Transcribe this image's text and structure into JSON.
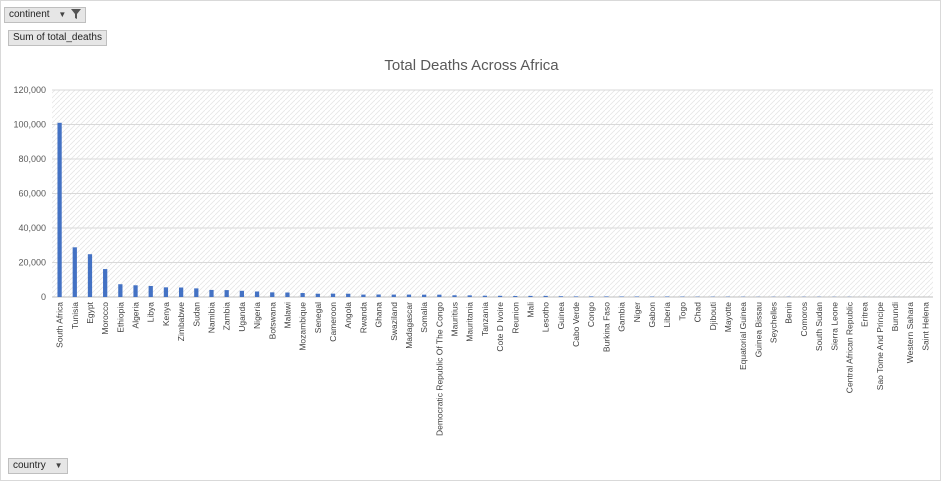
{
  "filters": {
    "continent_label": "continent",
    "values_label": "Sum of total_deaths",
    "axis_field_label": "country"
  },
  "colors": {
    "bar": "#4472c4",
    "grid": "#d9d9d9",
    "plot_pattern": "#e6e6e6"
  },
  "chart_data": {
    "type": "bar",
    "title": "Total Deaths Across Africa",
    "xlabel": "",
    "ylabel": "",
    "ylim": [
      0,
      120000
    ],
    "yticks": [
      "0",
      "20,000",
      "40,000",
      "60,000",
      "80,000",
      "100,000",
      "120,000"
    ],
    "grid": true,
    "legend": "none",
    "categories": [
      "South Africa",
      "Tunisia",
      "Egypt",
      "Morocco",
      "Ethiopia",
      "Algeria",
      "Libya",
      "Kenya",
      "Zimbabwe",
      "Sudan",
      "Namibia",
      "Zambia",
      "Uganda",
      "Nigeria",
      "Botswana",
      "Malawi",
      "Mozambique",
      "Senegal",
      "Cameroon",
      "Angola",
      "Rwanda",
      "Ghana",
      "Swaziland",
      "Madagascar",
      "Somalia",
      "Democratic Republic Of The Congo",
      "Mauritius",
      "Mauritania",
      "Tanzania",
      "Cote D Ivoire",
      "Reunion",
      "Mali",
      "Lesotho",
      "Guinea",
      "Cabo Verde",
      "Congo",
      "Burkina Faso",
      "Gambia",
      "Niger",
      "Gabon",
      "Liberia",
      "Togo",
      "Chad",
      "Djibouti",
      "Mayotte",
      "Equatorial Guinea",
      "Guinea Bissau",
      "Seychelles",
      "Benin",
      "Comoros",
      "South Sudan",
      "Sierra Leone",
      "Central African Republic",
      "Eritrea",
      "Sao Tome And Principe",
      "Burundi",
      "Western Sahara",
      "Saint Helena"
    ],
    "values": [
      101000,
      28800,
      24800,
      16200,
      7400,
      6800,
      6400,
      5600,
      5500,
      5000,
      4100,
      4000,
      3600,
      3200,
      2700,
      2600,
      2300,
      1900,
      1950,
      1900,
      1400,
      1450,
      1400,
      1400,
      1350,
      1350,
      1000,
      950,
      750,
      700,
      600,
      650,
      650,
      450,
      350,
      350,
      350,
      300,
      300,
      250,
      300,
      250,
      200,
      200,
      200,
      180,
      120,
      150,
      150,
      150,
      150,
      120,
      110,
      50,
      20,
      40,
      0,
      0
    ]
  }
}
